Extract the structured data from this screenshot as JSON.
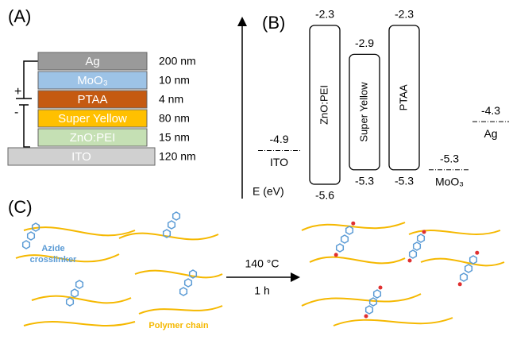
{
  "panels": {
    "a": "(A)",
    "b": "(B)",
    "c": "(C)"
  },
  "device_stack": {
    "layers": [
      {
        "name": "Ag",
        "thickness": "200 nm"
      },
      {
        "name": "MoO₃",
        "thickness": "10 nm"
      },
      {
        "name": "PTAA",
        "thickness": "4 nm"
      },
      {
        "name": "Super Yellow",
        "thickness": "80 nm"
      },
      {
        "name": "ZnO:PEI",
        "thickness": "15 nm"
      },
      {
        "name": "ITO",
        "thickness": "120 nm"
      }
    ],
    "plus": "+",
    "minus": "-"
  },
  "energy_diagram": {
    "axis_label": "E (eV)",
    "bands": [
      {
        "name": "ZnO:PEI",
        "top": -2.3,
        "bottom": -5.6
      },
      {
        "name": "Super Yellow",
        "top": -2.9,
        "bottom": -5.3
      },
      {
        "name": "PTAA",
        "top": -2.3,
        "bottom": -5.3
      }
    ],
    "electrodes": [
      {
        "name": "ITO",
        "level": -4.9
      },
      {
        "name": "MoO₃",
        "level": -5.3
      },
      {
        "name": "Ag",
        "level": -4.3
      }
    ]
  },
  "crosslinking": {
    "crosslinker_label": [
      "Azide",
      "crosslinker"
    ],
    "polymer_label": "Polymer chain",
    "temperature": "140 °C",
    "time": "1 h"
  }
}
